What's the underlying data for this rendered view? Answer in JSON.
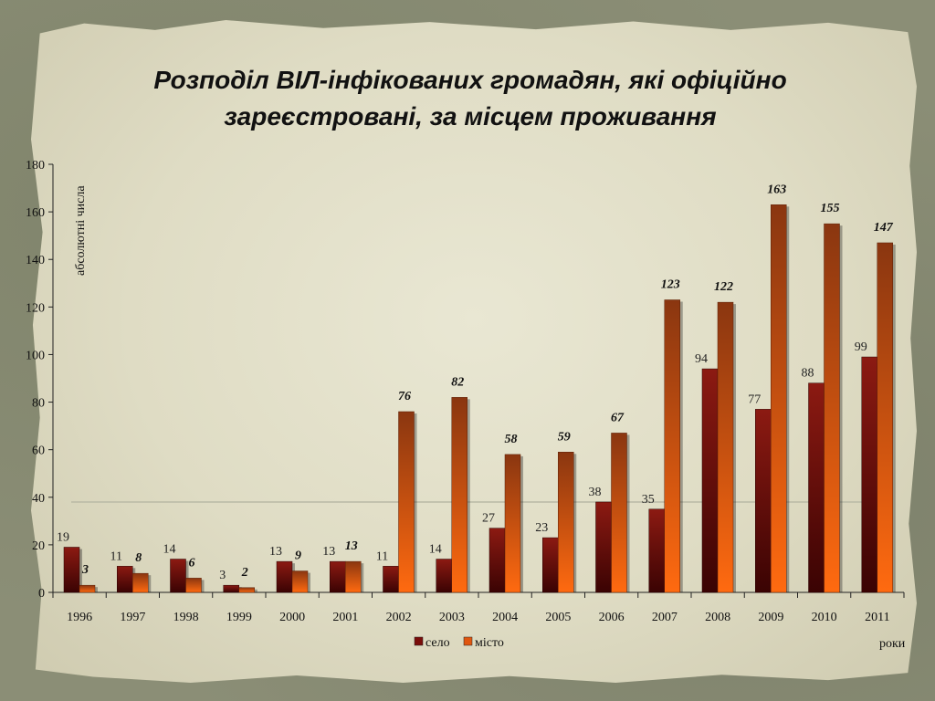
{
  "title_line1": "Розподіл ВІЛ-інфікованих громадян, які офіційно",
  "title_line2": "зареєстровані, за місцем проживання",
  "chart_data": {
    "type": "bar",
    "categories": [
      "1996",
      "1997",
      "1998",
      "1999",
      "2000",
      "2001",
      "2002",
      "2003",
      "2004",
      "2005",
      "2006",
      "2007",
      "2008",
      "2009",
      "2010",
      "2011"
    ],
    "series": [
      {
        "name": "село",
        "values": [
          19,
          11,
          14,
          3,
          13,
          13,
          11,
          14,
          27,
          23,
          38,
          35,
          94,
          77,
          88,
          99
        ],
        "color": "#7a0d0a"
      },
      {
        "name": "місто",
        "values": [
          3,
          8,
          6,
          2,
          9,
          13,
          76,
          82,
          58,
          59,
          67,
          123,
          122,
          163,
          155,
          147
        ],
        "color": "#e0560f"
      }
    ],
    "ylabel": "абсолютні числа",
    "xlabel": "роки",
    "ylim": [
      0,
      180
    ],
    "yticks": [
      "0",
      "20",
      "40",
      "60",
      "80",
      "100",
      "120",
      "140",
      "160",
      "180"
    ],
    "legend_position": "bottom",
    "grid": false
  }
}
